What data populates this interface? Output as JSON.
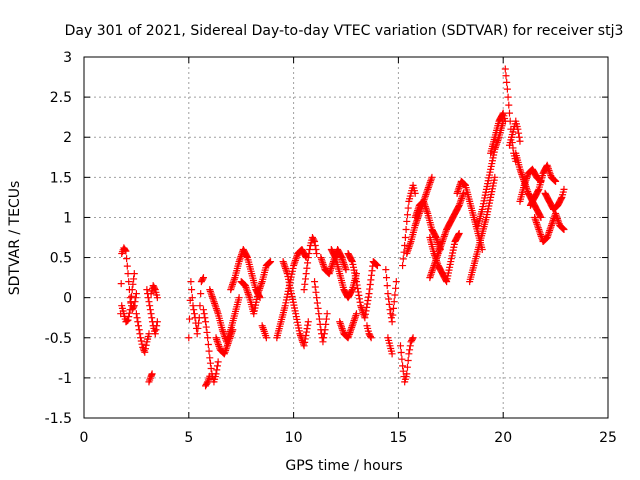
{
  "chart_data": {
    "type": "scatter",
    "title": "Day 301 of 2021, Sidereal Day-to-day VTEC variation (SDTVAR) for receiver stj3",
    "xlabel": "GPS time / hours",
    "ylabel": "SDTVAR / TECUs",
    "xlim": [
      0,
      25
    ],
    "ylim": [
      -1.5,
      3
    ],
    "xticks": [
      0,
      5,
      10,
      15,
      20,
      25
    ],
    "xtick_labels": [
      "0",
      "5",
      "10",
      "15",
      "20",
      "25"
    ],
    "yticks": [
      -1.5,
      -1,
      -0.5,
      0,
      0.5,
      1,
      1.5,
      2,
      2.5,
      3
    ],
    "ytick_labels": [
      "-1.5",
      "-1",
      "-0.5",
      "0",
      "0.5",
      "1",
      "1.5",
      "2",
      "2.5",
      "3"
    ],
    "grid": true,
    "marker": "+",
    "color": "#ff0000",
    "segments": [
      [
        [
          1.75,
          -0.2
        ],
        [
          1.8,
          0.55
        ],
        [
          1.9,
          0.62
        ],
        [
          2.0,
          0.58
        ],
        [
          2.1,
          0.3
        ],
        [
          2.2,
          0.0
        ],
        [
          2.3,
          -0.15
        ],
        [
          2.4,
          -0.1
        ],
        [
          2.5,
          0.05
        ]
      ],
      [
        [
          1.8,
          -0.1
        ],
        [
          1.9,
          -0.2
        ],
        [
          2.0,
          -0.3
        ],
        [
          2.1,
          -0.28
        ],
        [
          2.2,
          -0.15
        ],
        [
          2.3,
          0.1
        ],
        [
          2.4,
          0.3
        ]
      ],
      [
        [
          2.5,
          -0.2
        ],
        [
          2.6,
          -0.35
        ],
        [
          2.7,
          -0.5
        ],
        [
          2.8,
          -0.62
        ],
        [
          2.9,
          -0.68
        ],
        [
          3.0,
          -0.55
        ],
        [
          3.1,
          -0.45
        ]
      ],
      [
        [
          3.0,
          0.1
        ],
        [
          3.1,
          -0.05
        ],
        [
          3.2,
          -0.2
        ],
        [
          3.3,
          -0.35
        ],
        [
          3.4,
          -0.45
        ],
        [
          3.5,
          -0.3
        ]
      ],
      [
        [
          3.1,
          -1.05
        ],
        [
          3.2,
          -0.98
        ],
        [
          3.25,
          -0.95
        ]
      ],
      [
        [
          3.2,
          0.05
        ],
        [
          3.3,
          0.15
        ],
        [
          3.4,
          0.1
        ],
        [
          3.5,
          0.0
        ]
      ],
      [
        [
          5.0,
          -0.5
        ],
        [
          5.1,
          0.2
        ],
        [
          5.2,
          -0.1
        ],
        [
          5.3,
          -0.25
        ],
        [
          5.4,
          -0.45
        ],
        [
          5.5,
          -0.25
        ],
        [
          5.6,
          0.2
        ],
        [
          5.7,
          0.25
        ]
      ],
      [
        [
          5.7,
          -0.15
        ],
        [
          5.8,
          -0.3
        ],
        [
          5.9,
          -0.5
        ],
        [
          6.0,
          -0.75
        ],
        [
          6.1,
          -0.95
        ],
        [
          6.2,
          -1.05
        ],
        [
          6.3,
          -0.95
        ],
        [
          6.4,
          -0.8
        ]
      ],
      [
        [
          5.8,
          -1.1
        ],
        [
          5.9,
          -1.05
        ],
        [
          6.0,
          -0.98
        ]
      ],
      [
        [
          6.0,
          0.1
        ],
        [
          6.2,
          -0.05
        ],
        [
          6.4,
          -0.2
        ],
        [
          6.6,
          -0.4
        ],
        [
          6.8,
          -0.55
        ],
        [
          7.0,
          -0.4
        ],
        [
          7.2,
          -0.2
        ],
        [
          7.4,
          0.0
        ]
      ],
      [
        [
          6.3,
          -0.5
        ],
        [
          6.5,
          -0.65
        ],
        [
          6.7,
          -0.7
        ],
        [
          6.9,
          -0.55
        ],
        [
          7.1,
          -0.4
        ]
      ],
      [
        [
          7.0,
          0.1
        ],
        [
          7.2,
          0.25
        ],
        [
          7.4,
          0.45
        ],
        [
          7.6,
          0.6
        ],
        [
          7.8,
          0.5
        ],
        [
          8.0,
          0.3
        ],
        [
          8.2,
          0.1
        ],
        [
          8.4,
          0.0
        ]
      ],
      [
        [
          7.5,
          0.2
        ],
        [
          7.7,
          0.15
        ],
        [
          7.9,
          0.0
        ],
        [
          8.1,
          -0.2
        ],
        [
          8.3,
          0.05
        ],
        [
          8.5,
          0.2
        ],
        [
          8.7,
          0.4
        ],
        [
          8.9,
          0.45
        ]
      ],
      [
        [
          8.5,
          -0.35
        ],
        [
          8.6,
          -0.42
        ],
        [
          8.7,
          -0.5
        ]
      ],
      [
        [
          9.2,
          -0.5
        ],
        [
          9.4,
          -0.3
        ],
        [
          9.6,
          -0.1
        ],
        [
          9.8,
          0.15
        ],
        [
          10.0,
          0.4
        ],
        [
          10.2,
          0.55
        ],
        [
          10.4,
          0.6
        ],
        [
          10.6,
          0.5
        ]
      ],
      [
        [
          9.5,
          0.45
        ],
        [
          9.7,
          0.3
        ],
        [
          9.9,
          0.05
        ],
        [
          10.1,
          -0.2
        ],
        [
          10.3,
          -0.45
        ],
        [
          10.5,
          -0.6
        ],
        [
          10.7,
          -0.3
        ]
      ],
      [
        [
          10.5,
          0.1
        ],
        [
          10.6,
          0.3
        ],
        [
          10.7,
          0.5
        ],
        [
          10.8,
          0.65
        ],
        [
          10.9,
          0.75
        ],
        [
          11.0,
          0.7
        ],
        [
          11.1,
          0.55
        ]
      ],
      [
        [
          11.0,
          0.2
        ],
        [
          11.1,
          0.0
        ],
        [
          11.2,
          -0.2
        ],
        [
          11.3,
          -0.4
        ],
        [
          11.4,
          -0.55
        ],
        [
          11.5,
          -0.4
        ],
        [
          11.6,
          -0.2
        ]
      ],
      [
        [
          11.3,
          0.5
        ],
        [
          11.5,
          0.35
        ],
        [
          11.7,
          0.3
        ],
        [
          11.9,
          0.45
        ],
        [
          12.1,
          0.6
        ],
        [
          12.3,
          0.5
        ],
        [
          12.5,
          0.35
        ]
      ],
      [
        [
          11.8,
          0.6
        ],
        [
          12.0,
          0.5
        ],
        [
          12.2,
          0.3
        ],
        [
          12.4,
          0.1
        ],
        [
          12.6,
          0.0
        ],
        [
          12.8,
          0.1
        ],
        [
          13.0,
          0.3
        ]
      ],
      [
        [
          12.6,
          0.55
        ],
        [
          12.8,
          0.45
        ],
        [
          13.0,
          0.2
        ],
        [
          13.2,
          -0.1
        ],
        [
          13.4,
          -0.25
        ],
        [
          13.6,
          0.05
        ],
        [
          13.8,
          0.45
        ],
        [
          14.0,
          0.4
        ]
      ],
      [
        [
          12.2,
          -0.3
        ],
        [
          12.4,
          -0.45
        ],
        [
          12.6,
          -0.5
        ],
        [
          12.8,
          -0.35
        ],
        [
          13.0,
          -0.2
        ]
      ],
      [
        [
          13.5,
          -0.35
        ],
        [
          13.6,
          -0.45
        ],
        [
          13.7,
          -0.5
        ]
      ],
      [
        [
          14.4,
          0.35
        ],
        [
          14.5,
          0.05
        ],
        [
          14.6,
          -0.15
        ],
        [
          14.7,
          -0.3
        ],
        [
          14.8,
          -0.05
        ],
        [
          14.9,
          0.2
        ]
      ],
      [
        [
          14.5,
          -0.5
        ],
        [
          14.6,
          -0.6
        ],
        [
          14.7,
          -0.7
        ]
      ],
      [
        [
          15.1,
          -0.6
        ],
        [
          15.2,
          -0.85
        ],
        [
          15.3,
          -1.05
        ],
        [
          15.4,
          -0.95
        ],
        [
          15.5,
          -0.7
        ],
        [
          15.6,
          -0.55
        ],
        [
          15.7,
          -0.5
        ]
      ],
      [
        [
          15.2,
          0.4
        ],
        [
          15.3,
          0.65
        ],
        [
          15.4,
          0.95
        ],
        [
          15.5,
          1.2
        ],
        [
          15.6,
          1.3
        ],
        [
          15.7,
          1.4
        ],
        [
          15.8,
          1.3
        ]
      ],
      [
        [
          15.4,
          0.55
        ],
        [
          15.6,
          0.7
        ],
        [
          15.8,
          0.9
        ],
        [
          16.0,
          1.05
        ],
        [
          16.2,
          1.2
        ],
        [
          16.4,
          1.35
        ],
        [
          16.6,
          1.5
        ]
      ],
      [
        [
          15.8,
          1.0
        ],
        [
          16.0,
          1.15
        ],
        [
          16.2,
          1.2
        ],
        [
          16.4,
          1.05
        ],
        [
          16.6,
          0.85
        ],
        [
          16.8,
          0.75
        ],
        [
          17.0,
          0.6
        ]
      ],
      [
        [
          16.5,
          0.25
        ],
        [
          16.7,
          0.4
        ],
        [
          16.9,
          0.55
        ],
        [
          17.1,
          0.7
        ],
        [
          17.3,
          0.85
        ],
        [
          17.5,
          0.95
        ],
        [
          17.7,
          1.05
        ],
        [
          17.9,
          1.15
        ],
        [
          18.1,
          1.3
        ]
      ],
      [
        [
          16.5,
          0.75
        ],
        [
          16.7,
          0.55
        ],
        [
          16.9,
          0.4
        ],
        [
          17.1,
          0.3
        ],
        [
          17.3,
          0.2
        ],
        [
          17.5,
          0.45
        ],
        [
          17.7,
          0.7
        ],
        [
          17.9,
          0.8
        ]
      ],
      [
        [
          17.8,
          1.3
        ],
        [
          18.0,
          1.45
        ],
        [
          18.2,
          1.4
        ],
        [
          18.4,
          1.2
        ],
        [
          18.6,
          1.0
        ],
        [
          18.8,
          0.8
        ],
        [
          19.0,
          0.6
        ]
      ],
      [
        [
          18.4,
          0.2
        ],
        [
          18.6,
          0.4
        ],
        [
          18.8,
          0.6
        ],
        [
          19.0,
          0.8
        ],
        [
          19.2,
          1.0
        ],
        [
          19.4,
          1.25
        ],
        [
          19.6,
          1.5
        ]
      ],
      [
        [
          18.8,
          0.9
        ],
        [
          19.0,
          1.1
        ],
        [
          19.2,
          1.35
        ],
        [
          19.4,
          1.6
        ],
        [
          19.6,
          1.85
        ],
        [
          19.8,
          2.0
        ],
        [
          20.0,
          2.2
        ]
      ],
      [
        [
          19.4,
          1.8
        ],
        [
          19.6,
          2.0
        ],
        [
          19.8,
          2.2
        ],
        [
          20.0,
          2.3
        ],
        [
          20.1,
          2.2
        ]
      ],
      [
        [
          20.1,
          2.85
        ],
        [
          20.2,
          2.6
        ],
        [
          20.3,
          2.3
        ],
        [
          20.4,
          2.0
        ],
        [
          20.5,
          1.8
        ],
        [
          20.6,
          1.7
        ]
      ],
      [
        [
          20.3,
          1.9
        ],
        [
          20.4,
          2.0
        ],
        [
          20.5,
          2.1
        ],
        [
          20.6,
          2.2
        ],
        [
          20.7,
          2.1
        ],
        [
          20.8,
          1.95
        ]
      ],
      [
        [
          20.6,
          1.8
        ],
        [
          20.8,
          1.6
        ],
        [
          21.0,
          1.45
        ],
        [
          21.2,
          1.3
        ],
        [
          21.4,
          1.2
        ],
        [
          21.6,
          1.1
        ],
        [
          21.8,
          1.0
        ]
      ],
      [
        [
          20.8,
          1.2
        ],
        [
          21.0,
          1.4
        ],
        [
          21.2,
          1.55
        ],
        [
          21.4,
          1.6
        ],
        [
          21.6,
          1.5
        ],
        [
          21.8,
          1.45
        ]
      ],
      [
        [
          21.5,
          1.0
        ],
        [
          21.7,
          0.85
        ],
        [
          21.9,
          0.7
        ],
        [
          22.1,
          0.75
        ],
        [
          22.3,
          0.9
        ],
        [
          22.5,
          1.05
        ],
        [
          22.7,
          0.9
        ],
        [
          22.9,
          0.85
        ]
      ],
      [
        [
          22.0,
          1.3
        ],
        [
          22.2,
          1.2
        ],
        [
          22.4,
          1.1
        ],
        [
          22.6,
          1.15
        ],
        [
          22.8,
          1.25
        ],
        [
          22.9,
          1.35
        ]
      ],
      [
        [
          21.3,
          1.15
        ],
        [
          21.5,
          1.25
        ],
        [
          21.7,
          1.35
        ],
        [
          21.9,
          1.55
        ],
        [
          22.1,
          1.65
        ],
        [
          22.3,
          1.5
        ],
        [
          22.5,
          1.45
        ]
      ]
    ]
  }
}
